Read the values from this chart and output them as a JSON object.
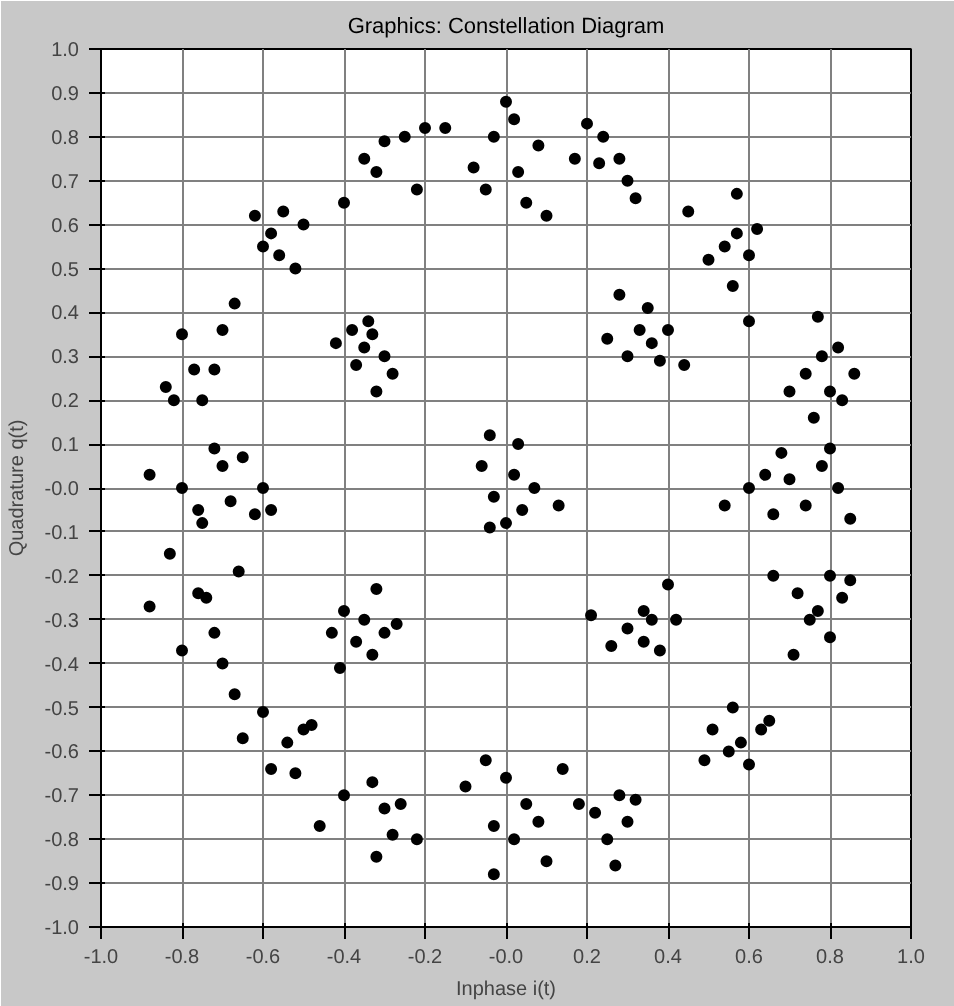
{
  "chart_data": {
    "type": "scatter",
    "title": "Graphics: Constellation Diagram",
    "xlabel": "Inphase i(t)",
    "ylabel": "Quadrature q(t)",
    "xlim": [
      -1.0,
      1.0
    ],
    "ylim": [
      -1.0,
      1.0
    ],
    "xticks": [
      {
        "value": -1,
        "label": "-1.0"
      },
      -0.8,
      -0.6,
      -0.4,
      -0.2,
      {
        "value": 0.0,
        "label": "-0.0"
      },
      0.2,
      0.4,
      0.6,
      0.8,
      {
        "value": 1,
        "label": "1.0"
      }
    ],
    "yticks": [
      {
        "value": -1,
        "label": "-1.0"
      },
      -0.9,
      -0.8,
      -0.7,
      -0.6,
      -0.5,
      -0.4,
      -0.3,
      -0.2,
      -0.1,
      {
        "value": 0.0,
        "label": "-0.0"
      },
      0.1,
      0.2,
      0.3,
      0.4,
      0.5,
      0.6,
      0.7,
      0.8,
      0.9,
      {
        "value": 1,
        "label": "1.0"
      }
    ],
    "grid": true,
    "marker": "circle",
    "series": [
      {
        "color": "#000000",
        "x": [
          0.0,
          -0.03,
          0.03,
          -0.05,
          0.05,
          0.08,
          -0.08,
          0.1,
          0.02,
          0.2,
          0.23,
          0.28,
          0.3,
          0.24,
          0.17,
          0.32,
          -0.4,
          -0.35,
          -0.3,
          -0.25,
          -0.22,
          -0.2,
          -0.32,
          -0.15,
          -0.62,
          -0.58,
          -0.56,
          -0.55,
          -0.6,
          -0.52,
          -0.5,
          -0.82,
          -0.8,
          -0.77,
          -0.75,
          -0.7,
          -0.67,
          -0.72,
          -0.84,
          -0.88,
          -0.8,
          -0.76,
          -0.7,
          -0.68,
          -0.65,
          -0.6,
          -0.62,
          -0.75,
          -0.58,
          -0.72,
          -0.88,
          -0.83,
          -0.76,
          -0.74,
          -0.8,
          -0.72,
          -0.7,
          -0.66,
          -0.65,
          -0.6,
          -0.58,
          -0.54,
          -0.5,
          -0.48,
          -0.52,
          -0.67,
          -0.4,
          -0.33,
          -0.3,
          -0.28,
          -0.26,
          -0.22,
          -0.32,
          -0.46,
          -0.05,
          -0.03,
          0.0,
          0.02,
          0.05,
          0.08,
          -0.03,
          0.1,
          -0.1,
          0.14,
          0.18,
          0.22,
          0.25,
          0.28,
          0.3,
          0.27,
          0.32,
          0.51,
          0.55,
          0.56,
          0.58,
          0.6,
          0.63,
          0.49,
          0.65,
          0.66,
          0.72,
          0.75,
          0.8,
          0.83,
          0.77,
          0.71,
          0.85,
          0.8,
          0.54,
          0.6,
          0.64,
          0.66,
          0.7,
          0.74,
          0.78,
          0.82,
          0.85,
          0.8,
          0.68,
          0.7,
          0.74,
          0.78,
          0.8,
          0.82,
          0.76,
          0.86,
          0.77,
          0.83,
          0.5,
          0.54,
          0.57,
          0.6,
          0.62,
          0.56,
          0.57,
          0.45,
          0.6,
          -0.42,
          -0.38,
          -0.35,
          -0.33,
          -0.3,
          -0.37,
          -0.32,
          -0.28,
          -0.34,
          0.25,
          0.3,
          0.33,
          0.36,
          0.38,
          0.4,
          0.28,
          0.44,
          0.35,
          -0.43,
          -0.4,
          -0.37,
          -0.35,
          -0.33,
          -0.3,
          -0.27,
          -0.32,
          -0.41,
          0.21,
          0.26,
          0.3,
          0.34,
          0.36,
          0.38,
          0.42,
          0.34,
          0.4,
          -0.06,
          0.02,
          -0.03,
          0.04,
          0.0,
          0.07,
          -0.04,
          0.13,
          -0.04,
          0.03
        ],
        "values": [
          0.88,
          0.8,
          0.72,
          0.68,
          0.65,
          0.78,
          0.73,
          0.62,
          0.84,
          0.83,
          0.74,
          0.75,
          0.7,
          0.8,
          0.75,
          0.66,
          0.65,
          0.75,
          0.79,
          0.8,
          0.68,
          0.82,
          0.72,
          0.82,
          0.62,
          0.58,
          0.53,
          0.63,
          0.55,
          0.5,
          0.6,
          0.2,
          0.35,
          0.27,
          0.2,
          0.36,
          0.42,
          0.27,
          0.23,
          0.03,
          0.0,
          -0.05,
          0.05,
          -0.03,
          0.07,
          0.0,
          -0.06,
          -0.08,
          -0.05,
          0.09,
          -0.27,
          -0.15,
          -0.24,
          -0.25,
          -0.37,
          -0.33,
          -0.4,
          -0.19,
          -0.57,
          -0.51,
          -0.64,
          -0.58,
          -0.55,
          -0.54,
          -0.65,
          -0.47,
          -0.7,
          -0.67,
          -0.73,
          -0.79,
          -0.72,
          -0.8,
          -0.84,
          -0.77,
          -0.62,
          -0.77,
          -0.66,
          -0.8,
          -0.72,
          -0.76,
          -0.88,
          -0.85,
          -0.68,
          -0.64,
          -0.72,
          -0.74,
          -0.8,
          -0.7,
          -0.76,
          -0.86,
          -0.71,
          -0.55,
          -0.6,
          -0.5,
          -0.58,
          -0.63,
          -0.55,
          -0.62,
          -0.53,
          -0.2,
          -0.24,
          -0.3,
          -0.2,
          -0.25,
          -0.28,
          -0.38,
          -0.21,
          -0.34,
          -0.04,
          0.0,
          0.03,
          -0.06,
          0.02,
          -0.04,
          0.05,
          0.0,
          -0.07,
          0.09,
          0.08,
          0.22,
          0.26,
          0.3,
          0.22,
          0.32,
          0.16,
          0.26,
          0.39,
          0.2,
          0.52,
          0.55,
          0.58,
          0.53,
          0.59,
          0.46,
          0.67,
          0.63,
          0.38,
          0.33,
          0.36,
          0.32,
          0.35,
          0.3,
          0.28,
          0.22,
          0.26,
          0.38,
          0.34,
          0.3,
          0.36,
          0.33,
          0.29,
          0.36,
          0.44,
          0.28,
          0.41,
          -0.33,
          -0.28,
          -0.35,
          -0.3,
          -0.38,
          -0.33,
          -0.31,
          -0.23,
          -0.41,
          -0.29,
          -0.36,
          -0.32,
          -0.35,
          -0.3,
          -0.37,
          -0.3,
          -0.28,
          -0.22,
          0.05,
          0.03,
          -0.02,
          -0.05,
          -0.08,
          0.0,
          -0.09,
          -0.04,
          0.12,
          0.1
        ]
      }
    ]
  }
}
